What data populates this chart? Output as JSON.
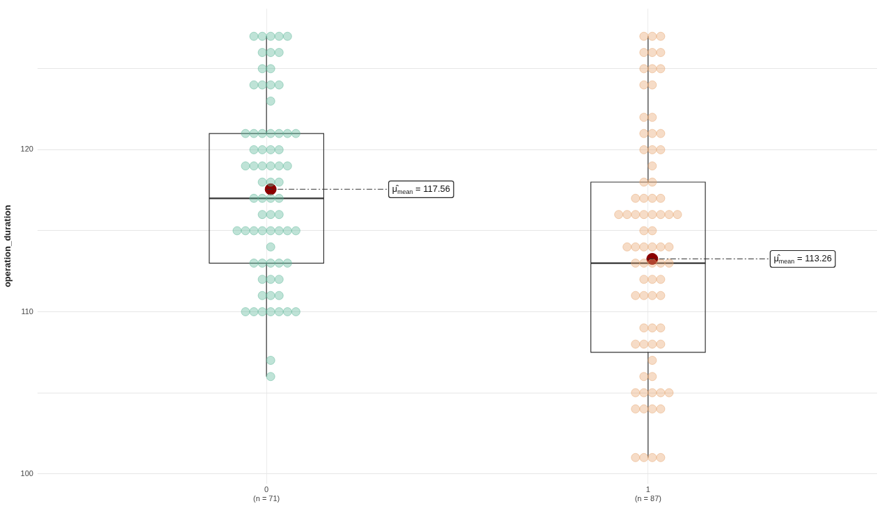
{
  "chart_data": {
    "type": "box",
    "ylabel": "operation_duration",
    "categories": [
      "0\n(n = 71)",
      "1\n(n = 87)"
    ],
    "ylim": [
      99.4,
      128.7
    ],
    "yticks": [
      100,
      {
        "value": 105,
        "label": null
      },
      110,
      {
        "value": 115,
        "label": null
      },
      120,
      {
        "value": 125,
        "label": null
      }
    ],
    "grid": true,
    "legend": false,
    "series": [
      {
        "type": "box",
        "color": "#333333",
        "boxes": [
          {
            "low": 106,
            "q1": 113,
            "median": 117,
            "q3": 121,
            "high": 127
          },
          {
            "low": 101,
            "q1": 107.5,
            "median": 113,
            "q3": 118,
            "high": 127
          }
        ]
      },
      {
        "type": "scatter",
        "color": "#5fb89a",
        "x": [
          "0\n(n = 71)",
          "0\n(n = 71)",
          "0\n(n = 71)",
          "0\n(n = 71)",
          "0\n(n = 71)",
          "0\n(n = 71)",
          "0\n(n = 71)",
          "0\n(n = 71)",
          "0\n(n = 71)",
          "0\n(n = 71)",
          "0\n(n = 71)",
          "0\n(n = 71)",
          "0\n(n = 71)",
          "0\n(n = 71)",
          "0\n(n = 71)",
          "0\n(n = 71)",
          "0\n(n = 71)",
          "0\n(n = 71)",
          "0\n(n = 71)",
          "0\n(n = 71)",
          "0\n(n = 71)",
          "0\n(n = 71)",
          "0\n(n = 71)",
          "0\n(n = 71)",
          "0\n(n = 71)",
          "0\n(n = 71)",
          "0\n(n = 71)",
          "0\n(n = 71)",
          "0\n(n = 71)",
          "0\n(n = 71)",
          "0\n(n = 71)",
          "0\n(n = 71)",
          "0\n(n = 71)",
          "0\n(n = 71)",
          "0\n(n = 71)",
          "0\n(n = 71)",
          "0\n(n = 71)",
          "0\n(n = 71)",
          "0\n(n = 71)",
          "0\n(n = 71)",
          "0\n(n = 71)",
          "0\n(n = 71)",
          "0\n(n = 71)",
          "0\n(n = 71)",
          "0\n(n = 71)",
          "0\n(n = 71)",
          "0\n(n = 71)",
          "0\n(n = 71)",
          "0\n(n = 71)",
          "0\n(n = 71)",
          "0\n(n = 71)",
          "0\n(n = 71)",
          "0\n(n = 71)",
          "0\n(n = 71)",
          "0\n(n = 71)",
          "0\n(n = 71)",
          "0\n(n = 71)",
          "0\n(n = 71)",
          "0\n(n = 71)",
          "0\n(n = 71)",
          "0\n(n = 71)",
          "0\n(n = 71)",
          "0\n(n = 71)",
          "0\n(n = 71)",
          "0\n(n = 71)",
          "0\n(n = 71)",
          "0\n(n = 71)",
          "0\n(n = 71)",
          "0\n(n = 71)",
          "0\n(n = 71)",
          "0\n(n = 71)"
        ],
        "values": [
          127,
          127,
          127,
          127,
          127,
          126,
          126,
          126,
          125,
          125,
          124,
          124,
          124,
          124,
          123,
          121,
          121,
          121,
          121,
          121,
          121,
          120,
          120,
          120,
          120,
          119,
          119,
          119,
          119,
          119,
          118,
          118,
          118,
          117,
          117,
          117,
          117,
          116,
          116,
          116,
          115,
          115,
          115,
          115,
          115,
          115,
          115,
          114,
          113,
          113,
          113,
          113,
          113,
          112,
          112,
          112,
          111,
          111,
          111,
          110,
          110,
          110,
          110,
          110,
          110,
          107,
          106,
          119,
          115,
          121,
          110
        ]
      },
      {
        "type": "scatter",
        "color": "#e8a872",
        "x": [
          "1\n(n = 87)",
          "1\n(n = 87)",
          "1\n(n = 87)",
          "1\n(n = 87)",
          "1\n(n = 87)",
          "1\n(n = 87)",
          "1\n(n = 87)",
          "1\n(n = 87)",
          "1\n(n = 87)",
          "1\n(n = 87)",
          "1\n(n = 87)",
          "1\n(n = 87)",
          "1\n(n = 87)",
          "1\n(n = 87)",
          "1\n(n = 87)",
          "1\n(n = 87)",
          "1\n(n = 87)",
          "1\n(n = 87)",
          "1\n(n = 87)",
          "1\n(n = 87)",
          "1\n(n = 87)",
          "1\n(n = 87)",
          "1\n(n = 87)",
          "1\n(n = 87)",
          "1\n(n = 87)",
          "1\n(n = 87)",
          "1\n(n = 87)",
          "1\n(n = 87)",
          "1\n(n = 87)",
          "1\n(n = 87)",
          "1\n(n = 87)",
          "1\n(n = 87)",
          "1\n(n = 87)",
          "1\n(n = 87)",
          "1\n(n = 87)",
          "1\n(n = 87)",
          "1\n(n = 87)",
          "1\n(n = 87)",
          "1\n(n = 87)",
          "1\n(n = 87)",
          "1\n(n = 87)",
          "1\n(n = 87)",
          "1\n(n = 87)",
          "1\n(n = 87)",
          "1\n(n = 87)",
          "1\n(n = 87)",
          "1\n(n = 87)",
          "1\n(n = 87)",
          "1\n(n = 87)",
          "1\n(n = 87)",
          "1\n(n = 87)",
          "1\n(n = 87)",
          "1\n(n = 87)",
          "1\n(n = 87)",
          "1\n(n = 87)",
          "1\n(n = 87)",
          "1\n(n = 87)",
          "1\n(n = 87)",
          "1\n(n = 87)",
          "1\n(n = 87)",
          "1\n(n = 87)",
          "1\n(n = 87)",
          "1\n(n = 87)",
          "1\n(n = 87)",
          "1\n(n = 87)",
          "1\n(n = 87)",
          "1\n(n = 87)",
          "1\n(n = 87)",
          "1\n(n = 87)",
          "1\n(n = 87)",
          "1\n(n = 87)",
          "1\n(n = 87)",
          "1\n(n = 87)",
          "1\n(n = 87)",
          "1\n(n = 87)",
          "1\n(n = 87)",
          "1\n(n = 87)"
        ],
        "values": [
          127,
          127,
          127,
          126,
          126,
          126,
          125,
          125,
          125,
          124,
          124,
          122,
          122,
          121,
          121,
          121,
          120,
          120,
          120,
          119,
          118,
          118,
          117,
          117,
          117,
          117,
          116,
          116,
          116,
          116,
          116,
          116,
          116,
          116,
          115,
          115,
          114,
          114,
          114,
          114,
          114,
          114,
          113,
          113,
          113,
          113,
          113,
          112,
          112,
          112,
          111,
          111,
          111,
          111,
          109,
          109,
          109,
          108,
          108,
          108,
          108,
          107,
          106,
          106,
          105,
          105,
          105,
          105,
          105,
          104,
          104,
          104,
          104,
          101,
          101,
          101,
          101
        ]
      },
      {
        "type": "scatter",
        "color": "#8b0000",
        "x": [
          "0\n(n = 71)",
          "1\n(n = 87)"
        ],
        "values": [
          117.56,
          113.26
        ]
      }
    ],
    "annotations": [
      {
        "text": "μ̂$_{mean}$ = 117.56",
        "x": "0\n(n = 71)",
        "y": 117.56
      },
      {
        "text": "μ̂$_{mean}$ = 113.26",
        "x": "1\n(n = 87)",
        "y": 113.26
      }
    ]
  }
}
